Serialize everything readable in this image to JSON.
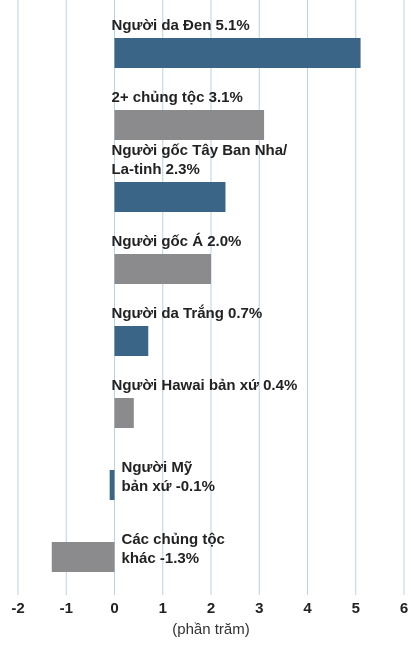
{
  "chart_data": {
    "type": "barh",
    "categories": [
      "Người da Đen",
      "2+ chủng tộc",
      "Người gốc Tây Ban Nha/\nLa-tinh",
      "Người gốc Á",
      "Người da Trắng",
      "Người Hawai bản xứ",
      "Người Mỹ\nbản xứ",
      "Các chủng tộc\nkhác"
    ],
    "values": [
      5.1,
      3.1,
      2.3,
      2.0,
      0.7,
      0.4,
      -0.1,
      -1.3
    ],
    "value_labels": [
      "5.1%",
      "3.1%",
      "2.3%",
      "2.0%",
      "0.7%",
      "0.4%",
      "-0.1%",
      "-1.3%"
    ],
    "colors": [
      "#3b6587",
      "#8b8b8d",
      "#3b6587",
      "#8b8b8d",
      "#3b6587",
      "#8b8b8d",
      "#3b6587",
      "#8b8b8d"
    ],
    "xlim": [
      -2,
      6
    ],
    "xticks": [
      -2,
      -1,
      0,
      1,
      2,
      3,
      4,
      5,
      6
    ],
    "xlabel": "(phần trăm)",
    "grid": true
  }
}
